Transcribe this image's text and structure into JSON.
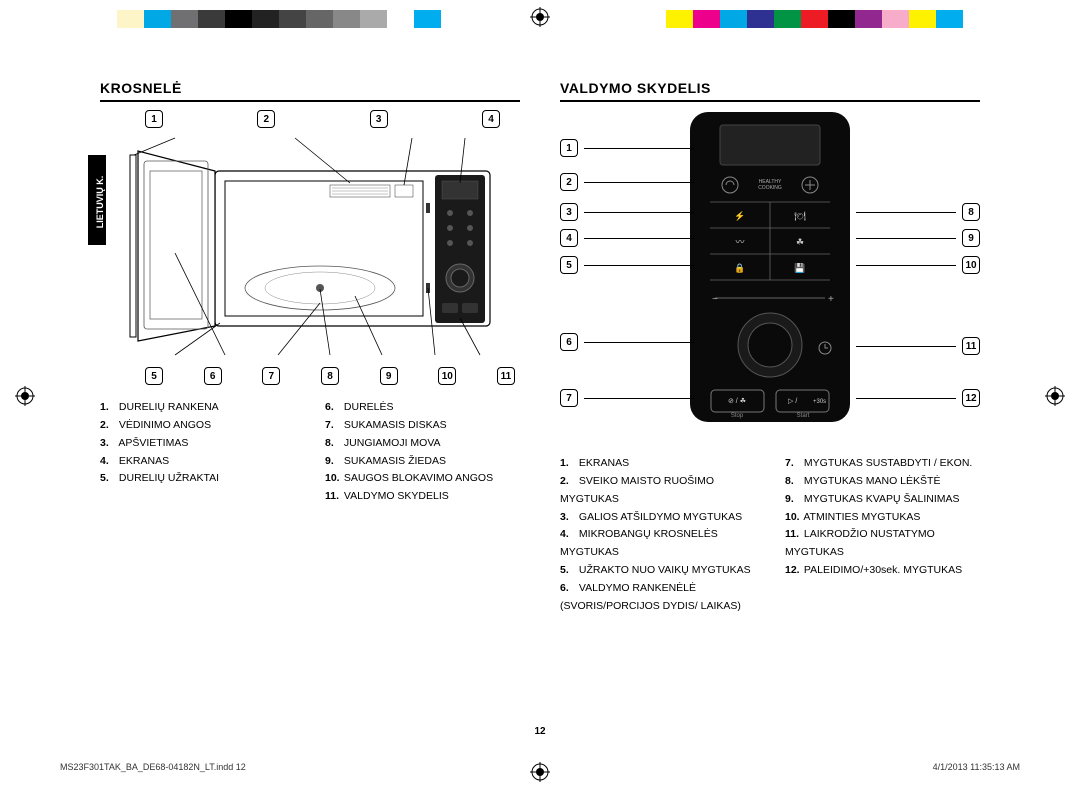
{
  "colorBars": {
    "left": [
      "#ffffff",
      "#fdf5c8",
      "#00a8e6",
      "#706f72",
      "#3a3a3a",
      "#000000",
      "#222222",
      "#444444",
      "#666666",
      "#888888",
      "#aaaaaa",
      "#ffffff",
      "#00aeef"
    ],
    "right": [
      "#ffffff",
      "#fff200",
      "#ec008c",
      "#00a8e6",
      "#2e3192",
      "#009444",
      "#ed1c24",
      "#000000",
      "#92278f",
      "#f7adc9",
      "#fef200",
      "#00aeef",
      "#ffffff"
    ]
  },
  "sideTab": "LIETUVIŲ K.",
  "left": {
    "title": "KROSNELĖ",
    "topCallouts": [
      "1",
      "2",
      "3",
      "4"
    ],
    "bottomCallouts": [
      "5",
      "6",
      "7",
      "8",
      "9",
      "10",
      "11"
    ],
    "legendA": [
      {
        "n": "1.",
        "t": "DURELIŲ RANKENA"
      },
      {
        "n": "2.",
        "t": "VĖDINIMO ANGOS"
      },
      {
        "n": "3.",
        "t": "APŠVIETIMAS"
      },
      {
        "n": "4.",
        "t": "EKRANAS"
      },
      {
        "n": "5.",
        "t": "DURELIŲ UŽRAKTAI"
      }
    ],
    "legendB": [
      {
        "n": "6.",
        "t": "DURELĖS"
      },
      {
        "n": "7.",
        "t": "SUKAMASIS DISKAS"
      },
      {
        "n": "8.",
        "t": "JUNGIAMOJI MOVA"
      },
      {
        "n": "9.",
        "t": "SUKAMASIS ŽIEDAS"
      },
      {
        "n": "10.",
        "t": "SAUGOS BLOKAVIMO ANGOS"
      },
      {
        "n": "11.",
        "t": "VALDYMO SKYDELIS"
      }
    ]
  },
  "right": {
    "title": "VALDYMO SKYDELIS",
    "leftCallouts": [
      "1",
      "2",
      "3",
      "4",
      "5",
      "6",
      "7"
    ],
    "rightCallouts": [
      "8",
      "9",
      "10",
      "11",
      "12"
    ],
    "panel": {
      "healthyLabel": "HEALTHY COOKING",
      "plus30": "+30s",
      "stop": "Stop",
      "start": "Start"
    },
    "legendA": [
      {
        "n": "1.",
        "t": "EKRANAS"
      },
      {
        "n": "2.",
        "t": "SVEIKO MAISTO RUOŠIMO MYGTUKAS"
      },
      {
        "n": "3.",
        "t": "GALIOS ATŠILDYMO MYGTUKAS"
      },
      {
        "n": "4.",
        "t": "MIKROBANGŲ KROSNELĖS MYGTUKAS"
      },
      {
        "n": "5.",
        "t": "UŽRAKTO NUO VAIKŲ MYGTUKAS"
      },
      {
        "n": "6.",
        "t": "VALDYMO RANKENĖLĖ (SVORIS/PORCIJOS DYDIS/ LAIKAS)"
      }
    ],
    "legendB": [
      {
        "n": "7.",
        "t": "MYGTUKAS SUSTABDYTI / EKON."
      },
      {
        "n": "8.",
        "t": "MYGTUKAS MANO LĖKŠTĖ"
      },
      {
        "n": "9.",
        "t": "MYGTUKAS KVAPŲ ŠALINIMAS"
      },
      {
        "n": "10.",
        "t": "ATMINTIES MYGTUKAS"
      },
      {
        "n": "11.",
        "t": "LAIKRODŽIO NUSTATYMO MYGTUKAS"
      },
      {
        "n": "12.",
        "t": "PALEIDIMO/+30sek. MYGTUKAS"
      }
    ]
  },
  "pageNumber": "12",
  "footer": {
    "file": "MS23F301TAK_BA_DE68-04182N_LT.indd   12",
    "timestamp": "4/1/2013   11:35:13 AM"
  }
}
